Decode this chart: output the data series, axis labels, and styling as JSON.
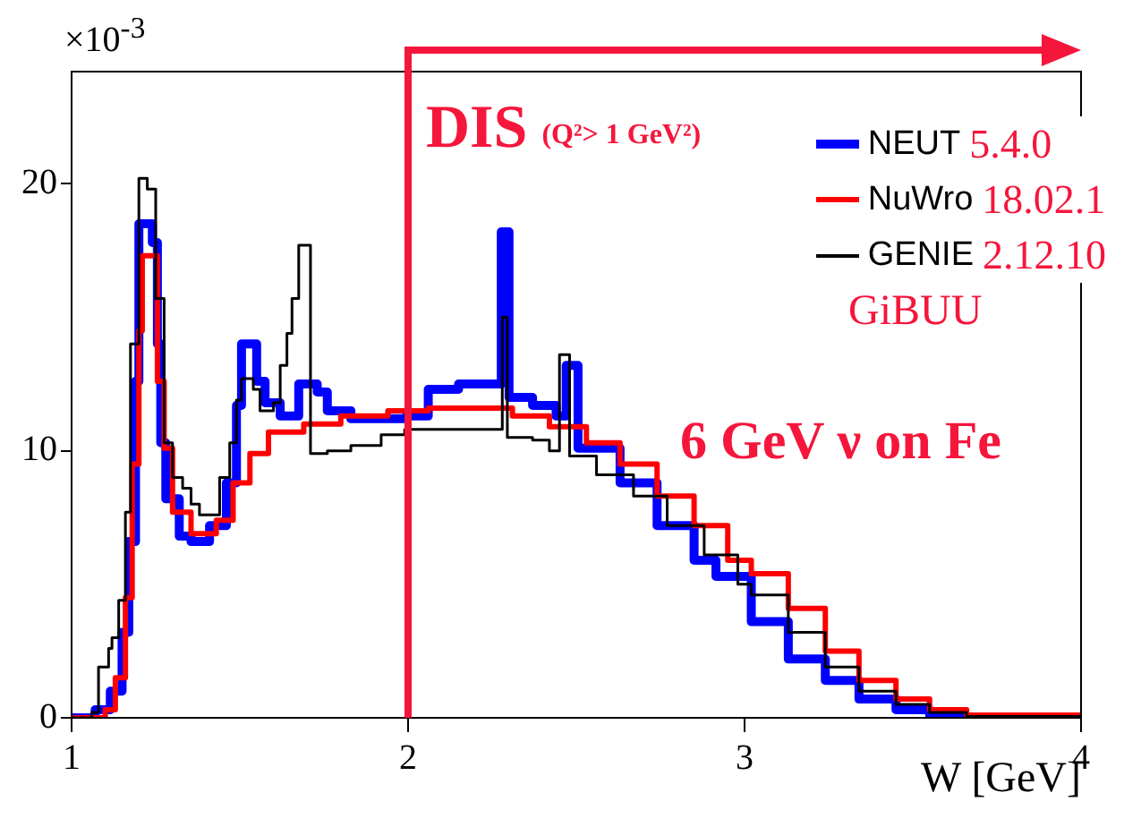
{
  "chart_data": {
    "type": "step",
    "xlabel": "W [GeV]",
    "xlim": [
      1,
      4
    ],
    "xticks": [
      1,
      2,
      3,
      4
    ],
    "ylim": [
      0,
      24.2
    ],
    "yticks": [
      0,
      10,
      20
    ],
    "grid": false,
    "legend": "top right",
    "annotations": [
      "×10$^{-3}$",
      "GiBUU",
      "6 GeV ν on Fe"
    ],
    "ref_lines": [
      {
        "axis": "x",
        "value": 2,
        "label": "DIS (Q²> 1 GeV²)",
        "color": "#f5163c"
      }
    ],
    "series": [
      {
        "name": "NEUT 5.4.0",
        "color": "#0000ff",
        "x": [
          1,
          1.07,
          1.115,
          1.15,
          1.17,
          1.19,
          1.2,
          1.24,
          1.255,
          1.265,
          1.28,
          1.32,
          1.355,
          1.41,
          1.46,
          1.49,
          1.505,
          1.55,
          1.575,
          1.62,
          1.675,
          1.73,
          1.76,
          1.83,
          1.995,
          2.06,
          2.15,
          2.277,
          2.3,
          2.37,
          2.44,
          2.47,
          2.505,
          2.53,
          2.63,
          2.74,
          2.85,
          2.915,
          3.02,
          3.13,
          3.24,
          3.34,
          3.45,
          3.55,
          3.65,
          4
        ],
        "values": [
          0,
          0.3,
          1,
          3.2,
          6.6,
          12.6,
          18.5,
          17.8,
          14,
          10.3,
          8.2,
          6.8,
          6.6,
          7.2,
          8.8,
          11.7,
          14,
          12.6,
          11.8,
          11.3,
          12.5,
          12.2,
          11.5,
          11.2,
          11.3,
          12.3,
          12.5,
          18.2,
          12,
          11.7,
          11.3,
          13.2,
          10.1,
          10.1,
          8.8,
          7.2,
          5.9,
          5.3,
          3.6,
          2.2,
          1.4,
          0.7,
          0.3,
          0.1,
          0,
          0
        ]
      },
      {
        "name": "NuWro 18.02.1",
        "color": "#ff0000",
        "x": [
          1,
          1.1,
          1.13,
          1.16,
          1.18,
          1.2,
          1.21,
          1.255,
          1.275,
          1.3,
          1.355,
          1.43,
          1.48,
          1.53,
          1.585,
          1.69,
          1.8,
          1.94,
          2.06,
          2.18,
          2.31,
          2.42,
          2.53,
          2.63,
          2.74,
          2.85,
          2.95,
          3.02,
          3.13,
          3.24,
          3.34,
          3.45,
          3.55,
          3.66,
          4
        ],
        "values": [
          0,
          0.3,
          1.5,
          4.5,
          9.5,
          14.5,
          17.3,
          12.6,
          10.1,
          7.7,
          6.9,
          7.4,
          8.8,
          9.9,
          10.7,
          11,
          11.3,
          11.5,
          11.6,
          11.6,
          11.3,
          10.9,
          10.3,
          9.5,
          8.3,
          7.2,
          5.9,
          5.4,
          4.1,
          2.5,
          1.4,
          0.7,
          0.3,
          0.1,
          0
        ]
      },
      {
        "name": "GENIE 2.12.10",
        "color": "#000000",
        "x": [
          1,
          1.06,
          1.08,
          1.11,
          1.12,
          1.14,
          1.16,
          1.175,
          1.2,
          1.225,
          1.25,
          1.275,
          1.3,
          1.33,
          1.355,
          1.38,
          1.41,
          1.44,
          1.47,
          1.49,
          1.505,
          1.54,
          1.56,
          1.6,
          1.62,
          1.64,
          1.655,
          1.675,
          1.71,
          1.76,
          1.83,
          1.92,
          1.99,
          2.13,
          2.28,
          2.295,
          2.37,
          2.42,
          2.45,
          2.48,
          2.56,
          2.67,
          2.77,
          2.88,
          2.98,
          3.02,
          3.13,
          3.24,
          3.34,
          3.45,
          3.55,
          3.66,
          4
        ],
        "values": [
          0,
          0.2,
          1.9,
          2.6,
          3,
          4.4,
          7.7,
          14,
          20.2,
          19.8,
          15.7,
          10.3,
          9,
          8.6,
          8,
          7.6,
          7.6,
          9,
          10.3,
          11.9,
          12.7,
          12.3,
          11.5,
          11.8,
          13.2,
          14.4,
          15.7,
          17.7,
          9.9,
          10,
          10.2,
          10.6,
          10.8,
          10.8,
          15,
          10.5,
          10.4,
          10,
          13.6,
          9.8,
          9.1,
          8.3,
          7.2,
          6.1,
          5,
          4.6,
          3.2,
          1.9,
          1,
          0.5,
          0.2,
          0.05,
          0
        ]
      }
    ]
  }
}
